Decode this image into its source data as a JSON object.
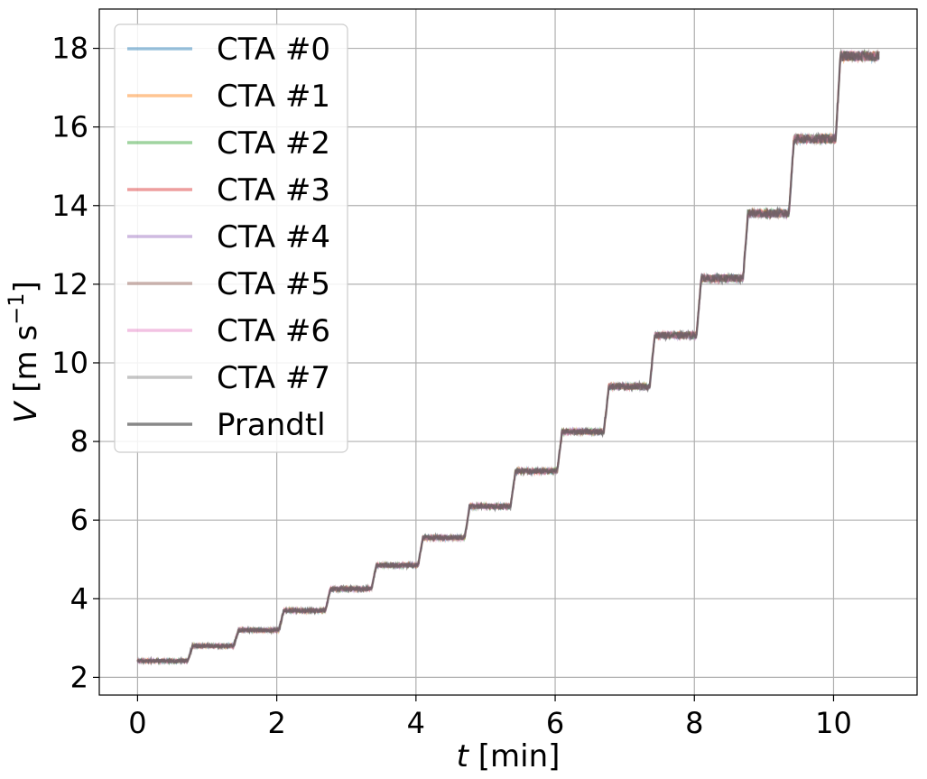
{
  "chart_data": {
    "type": "line",
    "xlabel": {
      "italic": "t",
      "rest": " [min]"
    },
    "ylabel": {
      "italic": "V",
      "rest": " [m s",
      "sup": "−1",
      "close": "]"
    },
    "xlim": [
      -0.55,
      11.2
    ],
    "ylim": [
      1.55,
      19.0
    ],
    "xticks": [
      0,
      2,
      4,
      6,
      8,
      10
    ],
    "yticks": [
      2,
      4,
      6,
      8,
      10,
      12,
      14,
      16,
      18
    ],
    "grid": true,
    "legend_position": "top-left",
    "series": [
      {
        "name": "CTA #0",
        "color": "#1f77b4",
        "alpha": 0.35
      },
      {
        "name": "CTA #1",
        "color": "#ff7f0e",
        "alpha": 0.35
      },
      {
        "name": "CTA #2",
        "color": "#2ca02c",
        "alpha": 0.35
      },
      {
        "name": "CTA #3",
        "color": "#d62728",
        "alpha": 0.35
      },
      {
        "name": "CTA #4",
        "color": "#9467bd",
        "alpha": 0.35
      },
      {
        "name": "CTA #5",
        "color": "#8c564b",
        "alpha": 0.35
      },
      {
        "name": "CTA #6",
        "color": "#e377c2",
        "alpha": 0.35
      },
      {
        "name": "CTA #7",
        "color": "#7f7f7f",
        "alpha": 0.35
      },
      {
        "name": "Prandtl",
        "color": "#555555",
        "alpha": 0.6
      }
    ],
    "steps": [
      {
        "t_start": 0.0,
        "t_end": 0.72,
        "v": 2.42
      },
      {
        "t_start": 0.72,
        "t_end": 1.38,
        "v": 2.8
      },
      {
        "t_start": 1.38,
        "t_end": 2.03,
        "v": 3.2
      },
      {
        "t_start": 2.03,
        "t_end": 2.7,
        "v": 3.7
      },
      {
        "t_start": 2.7,
        "t_end": 3.36,
        "v": 4.25
      },
      {
        "t_start": 3.36,
        "t_end": 4.03,
        "v": 4.85
      },
      {
        "t_start": 4.03,
        "t_end": 4.7,
        "v": 5.55
      },
      {
        "t_start": 4.7,
        "t_end": 5.36,
        "v": 6.35
      },
      {
        "t_start": 5.36,
        "t_end": 6.03,
        "v": 7.25
      },
      {
        "t_start": 6.03,
        "t_end": 6.7,
        "v": 8.25
      },
      {
        "t_start": 6.7,
        "t_end": 7.36,
        "v": 9.4
      },
      {
        "t_start": 7.36,
        "t_end": 8.03,
        "v": 10.7
      },
      {
        "t_start": 8.03,
        "t_end": 8.7,
        "v": 12.15
      },
      {
        "t_start": 8.7,
        "t_end": 9.36,
        "v": 13.8
      },
      {
        "t_start": 9.36,
        "t_end": 10.03,
        "v": 15.7
      },
      {
        "t_start": 10.03,
        "t_end": 10.65,
        "v": 17.8
      }
    ]
  }
}
